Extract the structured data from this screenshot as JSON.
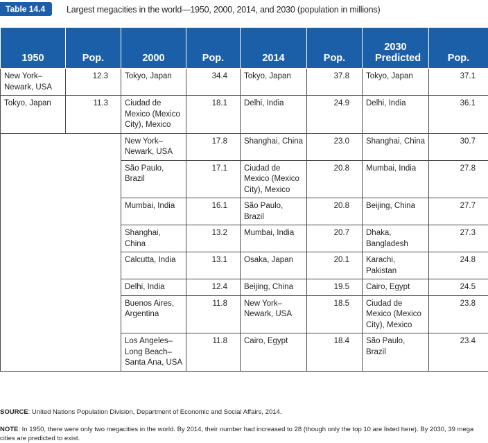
{
  "caption": {
    "tag": "Table 14.4",
    "title": "Largest megacities in the world—1950, 2000, 2014, and 2030 (population in millions)"
  },
  "headers": [
    "1950",
    "Pop.",
    "2000",
    "Pop.",
    "2014",
    "Pop.",
    "2030 Predicted",
    "Pop."
  ],
  "rows": [
    [
      "New York–Newark, USA",
      "12.3",
      "Tokyo, Japan",
      "34.4",
      "Tokyo, Japan",
      "37.8",
      "Tokyo, Japan",
      "37.1"
    ],
    [
      "Tokyo, Japan",
      "11.3",
      "Ciudad de Mexico (Mexico City), Mexico",
      "18.1",
      "Delhi, India",
      "24.9",
      "Delhi, India",
      "36.1"
    ],
    [
      "",
      "",
      "New York–Newark, USA",
      "17.8",
      "Shanghai, China",
      "23.0",
      "Shanghai, China",
      "30.7"
    ],
    [
      "",
      "",
      "São Paulo, Brazil",
      "17.1",
      "Ciudad de Mexico (Mexico City), Mexico",
      "20.8",
      "Mumbai, India",
      "27.8"
    ],
    [
      "",
      "",
      "Mumbai, India",
      "16.1",
      "São Paulo, Brazil",
      "20.8",
      "Beijing, China",
      "27.7"
    ],
    [
      "",
      "",
      "Shanghai, China",
      "13.2",
      "Mumbai, India",
      "20.7",
      "Dhaka, Bangladesh",
      "27.3"
    ],
    [
      "",
      "",
      "Calcutta, India",
      "13.1",
      "Osaka, Japan",
      "20.1",
      "Karachi, Pakistan",
      "24.8"
    ],
    [
      "",
      "",
      "Delhi, India",
      "12.4",
      "Beijing, China",
      "19.5",
      "Cairo, Egypt",
      "24.5"
    ],
    [
      "",
      "",
      "Buenos Aires, Argentina",
      "11.8",
      "New York–Newark, USA",
      "18.5",
      "Ciudad de Mexico (Mexico City), Mexico",
      "23.8"
    ],
    [
      "",
      "",
      "Los Angeles–Long Beach–Santa Ana, USA",
      "11.8",
      "Cairo, Egypt",
      "18.4",
      "São Paulo, Brazil",
      "23.4"
    ]
  ],
  "source": {
    "label": "SOURCE",
    "text": ": United Nations Population Division, Department of Economic and Social Affairs, 2014."
  },
  "note": {
    "label": "NOTE",
    "text": ": In 1950, there were only two megacities in the world. By 2014, their number had increased to 28 (though only the top 10 are listed here). By 2030, 39 mega cities are predicted to exist."
  },
  "colors": {
    "header_bg": "#1b5fa8",
    "header_text": "#ffffff",
    "border": "#4a4a4a"
  }
}
